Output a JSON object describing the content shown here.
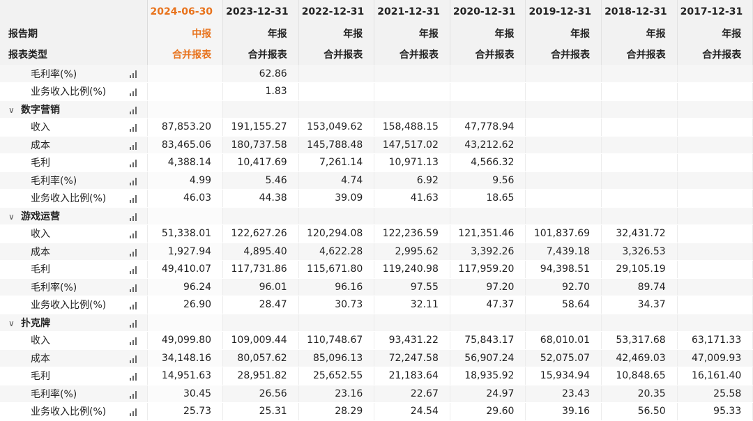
{
  "header": {
    "row_labels": [
      "",
      "报告期",
      "报表类型"
    ],
    "periods": [
      {
        "date": "2024-06-30",
        "type": "中报",
        "scope": "合并报表",
        "highlight": true
      },
      {
        "date": "2023-12-31",
        "type": "年报",
        "scope": "合并报表",
        "highlight": false
      },
      {
        "date": "2022-12-31",
        "type": "年报",
        "scope": "合并报表",
        "highlight": false
      },
      {
        "date": "2021-12-31",
        "type": "年报",
        "scope": "合并报表",
        "highlight": false
      },
      {
        "date": "2020-12-31",
        "type": "年报",
        "scope": "合并报表",
        "highlight": false
      },
      {
        "date": "2019-12-31",
        "type": "年报",
        "scope": "合并报表",
        "highlight": false
      },
      {
        "date": "2018-12-31",
        "type": "年报",
        "scope": "合并报表",
        "highlight": false
      },
      {
        "date": "2017-12-31",
        "type": "年报",
        "scope": "合并报表",
        "highlight": false
      }
    ]
  },
  "colors": {
    "highlight": "#e8731d"
  },
  "rows": [
    {
      "kind": "sub",
      "label": "毛利率(%)",
      "values": [
        "",
        "62.86",
        "",
        "",
        "",
        "",
        "",
        ""
      ]
    },
    {
      "kind": "sub",
      "label": "业务收入比例(%)",
      "values": [
        "",
        "1.83",
        "",
        "",
        "",
        "",
        "",
        ""
      ]
    },
    {
      "kind": "group",
      "label": "数字营销",
      "values": [
        "",
        "",
        "",
        "",
        "",
        "",
        "",
        ""
      ]
    },
    {
      "kind": "sub",
      "label": "收入",
      "values": [
        "87,853.20",
        "191,155.27",
        "153,049.62",
        "158,488.15",
        "47,778.94",
        "",
        "",
        ""
      ]
    },
    {
      "kind": "sub",
      "label": "成本",
      "values": [
        "83,465.06",
        "180,737.58",
        "145,788.48",
        "147,517.02",
        "43,212.62",
        "",
        "",
        ""
      ]
    },
    {
      "kind": "sub",
      "label": "毛利",
      "values": [
        "4,388.14",
        "10,417.69",
        "7,261.14",
        "10,971.13",
        "4,566.32",
        "",
        "",
        ""
      ]
    },
    {
      "kind": "sub",
      "label": "毛利率(%)",
      "values": [
        "4.99",
        "5.46",
        "4.74",
        "6.92",
        "9.56",
        "",
        "",
        ""
      ]
    },
    {
      "kind": "sub",
      "label": "业务收入比例(%)",
      "values": [
        "46.03",
        "44.38",
        "39.09",
        "41.63",
        "18.65",
        "",
        "",
        ""
      ]
    },
    {
      "kind": "group",
      "label": "游戏运营",
      "values": [
        "",
        "",
        "",
        "",
        "",
        "",
        "",
        ""
      ]
    },
    {
      "kind": "sub",
      "label": "收入",
      "values": [
        "51,338.01",
        "122,627.26",
        "120,294.08",
        "122,236.59",
        "121,351.46",
        "101,837.69",
        "32,431.72",
        ""
      ]
    },
    {
      "kind": "sub",
      "label": "成本",
      "values": [
        "1,927.94",
        "4,895.40",
        "4,622.28",
        "2,995.62",
        "3,392.26",
        "7,439.18",
        "3,326.53",
        ""
      ]
    },
    {
      "kind": "sub",
      "label": "毛利",
      "values": [
        "49,410.07",
        "117,731.86",
        "115,671.80",
        "119,240.98",
        "117,959.20",
        "94,398.51",
        "29,105.19",
        ""
      ]
    },
    {
      "kind": "sub",
      "label": "毛利率(%)",
      "values": [
        "96.24",
        "96.01",
        "96.16",
        "97.55",
        "97.20",
        "92.70",
        "89.74",
        ""
      ]
    },
    {
      "kind": "sub",
      "label": "业务收入比例(%)",
      "values": [
        "26.90",
        "28.47",
        "30.73",
        "32.11",
        "47.37",
        "58.64",
        "34.37",
        ""
      ]
    },
    {
      "kind": "group",
      "label": "扑克牌",
      "values": [
        "",
        "",
        "",
        "",
        "",
        "",
        "",
        ""
      ]
    },
    {
      "kind": "sub",
      "label": "收入",
      "values": [
        "49,099.80",
        "109,009.44",
        "110,748.67",
        "93,431.22",
        "75,843.17",
        "68,010.01",
        "53,317.68",
        "63,171.33"
      ]
    },
    {
      "kind": "sub",
      "label": "成本",
      "values": [
        "34,148.16",
        "80,057.62",
        "85,096.13",
        "72,247.58",
        "56,907.24",
        "52,075.07",
        "42,469.03",
        "47,009.93"
      ]
    },
    {
      "kind": "sub",
      "label": "毛利",
      "values": [
        "14,951.63",
        "28,951.82",
        "25,652.55",
        "21,183.64",
        "18,935.92",
        "15,934.94",
        "10,848.65",
        "16,161.40"
      ]
    },
    {
      "kind": "sub",
      "label": "毛利率(%)",
      "values": [
        "30.45",
        "26.56",
        "23.16",
        "22.67",
        "24.97",
        "23.43",
        "20.35",
        "25.58"
      ]
    },
    {
      "kind": "sub",
      "label": "业务收入比例(%)",
      "values": [
        "25.73",
        "25.31",
        "28.29",
        "24.54",
        "29.60",
        "39.16",
        "56.50",
        "95.33"
      ]
    }
  ]
}
